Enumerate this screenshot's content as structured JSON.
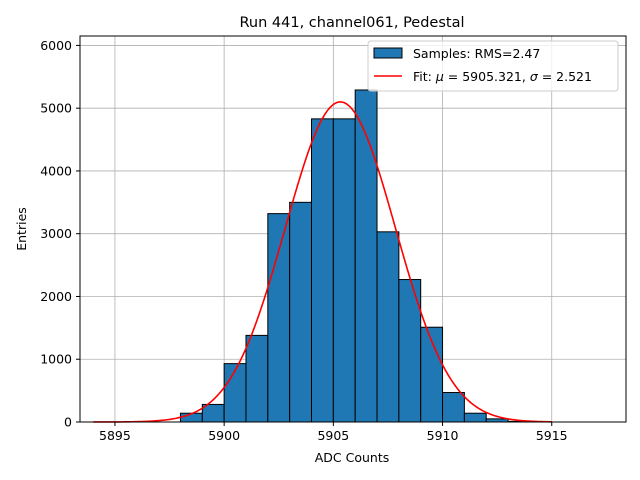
{
  "chart_data": {
    "type": "bar",
    "title": "Run 441, channel061, Pedestal",
    "xlabel": "ADC Counts",
    "ylabel": "Entries",
    "xlim": [
      5893.4,
      5918.4
    ],
    "ylim": [
      0,
      6150
    ],
    "xticks": [
      5895,
      5900,
      5905,
      5910,
      5915
    ],
    "yticks": [
      0,
      1000,
      2000,
      3000,
      4000,
      5000,
      6000
    ],
    "grid": true,
    "legend_position": "top-right",
    "histogram": {
      "name": "Samples: RMS=2.47",
      "color": "#1f77b4",
      "bin_width": 1,
      "bins": [
        {
          "left": 5898,
          "count": 140
        },
        {
          "left": 5899,
          "count": 280
        },
        {
          "left": 5900,
          "count": 930
        },
        {
          "left": 5901,
          "count": 1380
        },
        {
          "left": 5902,
          "count": 3320
        },
        {
          "left": 5903,
          "count": 3500
        },
        {
          "left": 5904,
          "count": 4830
        },
        {
          "left": 5905,
          "count": 4830
        },
        {
          "left": 5906,
          "count": 5290
        },
        {
          "left": 5907,
          "count": 3030
        },
        {
          "left": 5908,
          "count": 2270
        },
        {
          "left": 5909,
          "count": 1510
        },
        {
          "left": 5910,
          "count": 470
        },
        {
          "left": 5911,
          "count": 140
        },
        {
          "left": 5912,
          "count": 50
        },
        {
          "left": 5913,
          "count": 10
        }
      ]
    },
    "fit": {
      "legend_prefix": "Fit: ",
      "mu_symbol": "μ",
      "mu_text": " = 5905.321, ",
      "sigma_symbol": "σ",
      "sigma_text": " = 2.521",
      "color": "#ff0000",
      "mu": 5905.321,
      "sigma": 2.521,
      "amplitude": 5100,
      "x_range": [
        5894,
        5915
      ]
    }
  }
}
